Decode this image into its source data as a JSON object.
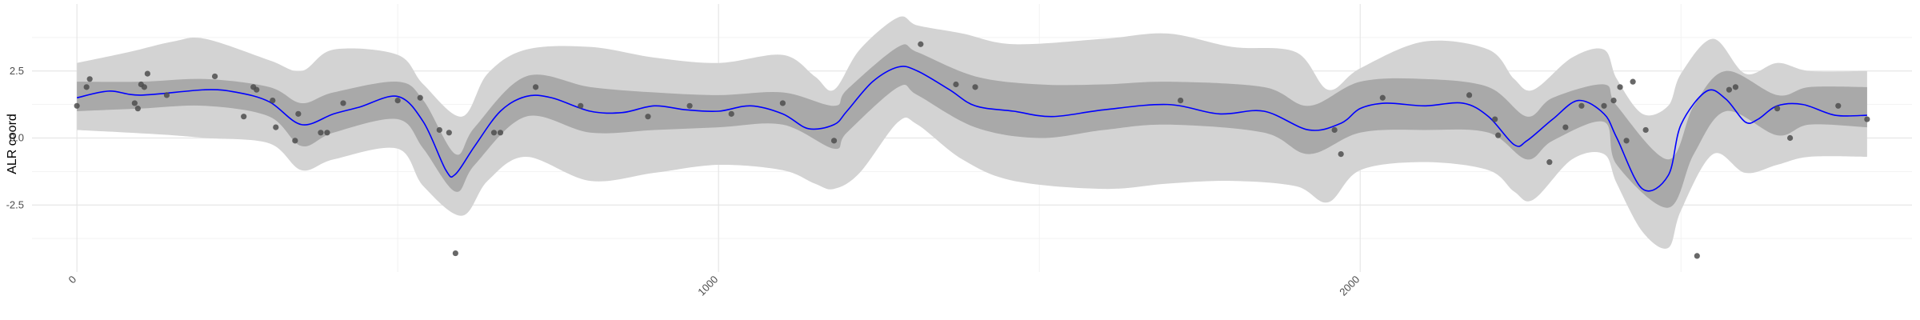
{
  "chart_data": {
    "type": "line",
    "ylabel": "ALR coord",
    "xlim": [
      -70,
      2860
    ],
    "ylim": [
      -5.0,
      5.0
    ],
    "x_ticks": [
      0,
      1000,
      2000
    ],
    "x_minor_ticks": [
      500,
      1500,
      2500
    ],
    "x_tick_labels": [
      "0",
      "1000",
      "2000"
    ],
    "y_ticks": [
      -2.5,
      0.0,
      2.5
    ],
    "y_minor_ticks": [
      -3.75,
      -1.25,
      1.25,
      3.75
    ],
    "y_tick_labels": [
      "-2.5",
      "0.0",
      "2.5"
    ],
    "grid": true,
    "colors": {
      "mean_line": "#0000ff",
      "inner_band": "#a9a9a9",
      "outer_band": "#d3d3d3",
      "points": "#4d4d4d",
      "grid_major": "#e6e6e6",
      "grid_minor": "#f2f2f2"
    },
    "mean_line": {
      "x": [
        0,
        50,
        100,
        200,
        250,
        300,
        350,
        400,
        440,
        500,
        540,
        575,
        590,
        620,
        660,
        700,
        740,
        800,
        850,
        900,
        950,
        1000,
        1050,
        1100,
        1140,
        1180,
        1200,
        1240,
        1280,
        1310,
        1360,
        1400,
        1460,
        1520,
        1600,
        1700,
        1780,
        1850,
        1920,
        1970,
        2000,
        2040,
        2100,
        2160,
        2200,
        2240,
        2260,
        2300,
        2340,
        2380,
        2400,
        2440,
        2480,
        2500,
        2540,
        2570,
        2600,
        2620,
        2650,
        2690,
        2740,
        2790
      ],
      "y": [
        1.5,
        1.75,
        1.6,
        1.8,
        1.7,
        1.35,
        0.5,
        0.9,
        1.15,
        1.55,
        0.6,
        -1.2,
        -1.35,
        -0.3,
        1.0,
        1.55,
        1.5,
        1.0,
        0.95,
        1.2,
        1.05,
        1.0,
        1.2,
        0.9,
        0.35,
        0.5,
        1.0,
        2.1,
        2.65,
        2.5,
        1.8,
        1.2,
        1.0,
        0.8,
        1.05,
        1.25,
        0.9,
        1.0,
        0.3,
        0.55,
        1.1,
        1.3,
        1.2,
        1.3,
        0.8,
        -0.25,
        -0.1,
        0.7,
        1.4,
        0.9,
        0.0,
        -1.9,
        -1.4,
        0.5,
        1.75,
        1.45,
        0.6,
        0.7,
        1.2,
        1.25,
        0.85,
        0.85
      ]
    },
    "inner_band": {
      "x": [
        0,
        100,
        200,
        300,
        350,
        400,
        500,
        540,
        590,
        620,
        700,
        800,
        900,
        1000,
        1100,
        1180,
        1200,
        1280,
        1310,
        1400,
        1500,
        1600,
        1700,
        1850,
        1920,
        2000,
        2100,
        2200,
        2260,
        2300,
        2380,
        2400,
        2480,
        2520,
        2570,
        2650,
        2700,
        2790
      ],
      "upper": [
        2.1,
        2.1,
        2.2,
        1.9,
        1.3,
        1.7,
        2.1,
        1.4,
        -0.6,
        0.4,
        2.3,
        1.9,
        1.7,
        1.6,
        1.7,
        1.2,
        1.8,
        3.4,
        3.2,
        2.3,
        2.0,
        2.0,
        2.1,
        1.9,
        1.2,
        2.1,
        2.2,
        1.9,
        0.8,
        1.5,
        2.0,
        1.2,
        -0.8,
        1.2,
        2.5,
        1.6,
        1.9,
        1.9
      ],
      "lower": [
        1.0,
        1.1,
        1.2,
        0.8,
        -0.3,
        0.2,
        0.7,
        -0.4,
        -2.0,
        -1.0,
        0.8,
        0.2,
        0.3,
        0.4,
        0.5,
        -0.4,
        0.2,
        1.9,
        1.6,
        0.4,
        0.0,
        0.3,
        0.5,
        0.2,
        -0.6,
        0.2,
        0.3,
        0.2,
        -0.8,
        -0.1,
        0.6,
        -1.0,
        -2.6,
        -0.6,
        1.0,
        0.1,
        0.5,
        0.4
      ]
    },
    "outer_band": {
      "x": [
        0,
        80,
        150,
        200,
        300,
        350,
        400,
        500,
        540,
        600,
        640,
        700,
        800,
        900,
        1000,
        1100,
        1150,
        1180,
        1220,
        1280,
        1310,
        1380,
        1460,
        1600,
        1700,
        1800,
        1900,
        1950,
        2000,
        2100,
        2200,
        2240,
        2270,
        2330,
        2380,
        2400,
        2440,
        2480,
        2500,
        2550,
        2600,
        2650,
        2700,
        2790
      ],
      "upper": [
        2.8,
        3.2,
        3.6,
        3.7,
        2.9,
        2.5,
        3.3,
        3.1,
        2.0,
        0.8,
        2.4,
        3.3,
        3.4,
        3.0,
        2.8,
        3.1,
        2.3,
        1.8,
        3.3,
        4.5,
        4.2,
        3.9,
        3.5,
        3.7,
        3.9,
        3.4,
        3.2,
        1.8,
        2.6,
        3.6,
        3.3,
        2.2,
        1.8,
        3.0,
        3.3,
        2.2,
        0.9,
        1.2,
        2.4,
        3.7,
        2.4,
        2.8,
        2.5,
        2.5
      ],
      "lower": [
        0.3,
        0.2,
        0.1,
        0.0,
        -0.2,
        -1.2,
        -0.8,
        -0.4,
        -1.8,
        -2.9,
        -1.6,
        -0.7,
        -1.6,
        -1.3,
        -1.0,
        -1.2,
        -1.7,
        -1.9,
        -1.3,
        0.6,
        0.5,
        -0.8,
        -1.6,
        -1.9,
        -1.7,
        -1.6,
        -1.8,
        -2.4,
        -1.2,
        -0.9,
        -1.2,
        -2.0,
        -2.3,
        -0.8,
        -0.6,
        -1.7,
        -3.5,
        -4.1,
        -2.7,
        -0.6,
        -1.3,
        -1.0,
        -0.7,
        -0.7
      ]
    },
    "points": {
      "x": [
        0,
        15,
        20,
        90,
        95,
        100,
        105,
        110,
        140,
        215,
        260,
        275,
        280,
        305,
        310,
        340,
        345,
        380,
        390,
        415,
        500,
        535,
        565,
        580,
        590,
        650,
        660,
        715,
        785,
        890,
        955,
        1020,
        1100,
        1180,
        1315,
        1370,
        1400,
        1720,
        1960,
        1970,
        2035,
        2170,
        2210,
        2215,
        2295,
        2320,
        2345,
        2380,
        2395,
        2405,
        2415,
        2425,
        2445,
        2525,
        2575,
        2585,
        2650,
        2670,
        2745,
        2790
      ],
      "y": [
        1.2,
        1.9,
        2.2,
        1.3,
        1.1,
        2.0,
        1.9,
        2.4,
        1.6,
        2.3,
        0.8,
        1.9,
        1.8,
        1.4,
        0.4,
        -0.1,
        0.9,
        0.2,
        0.2,
        1.3,
        1.4,
        1.5,
        0.3,
        0.2,
        -4.3,
        0.2,
        0.2,
        1.9,
        1.2,
        0.8,
        1.2,
        0.9,
        1.3,
        -0.1,
        3.5,
        2.0,
        1.9,
        1.4,
        0.3,
        -0.6,
        1.5,
        1.6,
        0.7,
        0.1,
        -0.9,
        0.4,
        1.2,
        1.2,
        1.4,
        1.9,
        -0.1,
        2.1,
        0.3,
        -4.4,
        1.8,
        1.9,
        1.1,
        0.0,
        1.2,
        0.7
      ]
    }
  }
}
